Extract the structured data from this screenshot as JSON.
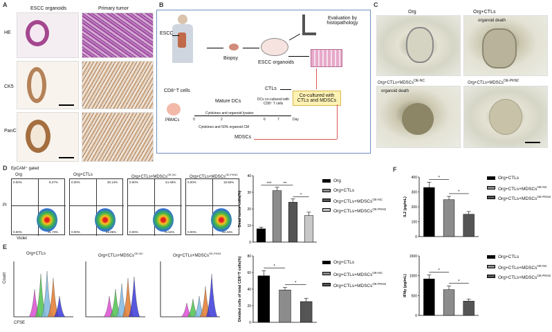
{
  "panel_labels": {
    "a": "A",
    "b": "B",
    "c": "C",
    "d": "D",
    "e": "E",
    "f": "F"
  },
  "panelA": {
    "col1": "ESCC organoids",
    "col2": "Primary tumor",
    "rows": [
      "HE",
      "CK5",
      "PanCk"
    ]
  },
  "panelB": {
    "escc": "ESCC",
    "biopsy": "Biopsy",
    "organoids": "ESCC organoids",
    "evaluation": "Evaluation by histopathology",
    "cd8": "CD8⁺T cells",
    "ctls": "CTLs",
    "coculture": "Co-cultured with CTLs and MDSCs",
    "mature_dcs": "Mature DCs",
    "dcs_cocultured": "DCs co-cultured with CD8⁺ T cells",
    "cytokines_lysates": "Cytokines and organoid lysates",
    "cytokines_cm": "Cytokines and 50% organoid CM",
    "pbmcs": "PBMCs",
    "mdscs": "MDSCs",
    "day": "Day",
    "ticks": [
      "0",
      "2",
      "6",
      "7"
    ]
  },
  "panelC": {
    "org": "Org",
    "org_ctls": "Org+CTLs",
    "org_death1": "organoid death",
    "mdsc_nc": "Org+CTLs+MDSCs",
    "mdsc_nc_sup": "OE-NC",
    "mdsc_pkn2": "Org+CTLs+MDSCs",
    "mdsc_pkn2_sup": "OE-PKN2",
    "org_death2": "organoid death"
  },
  "panelD": {
    "gate": "EpCAM⁺ gated",
    "plot_titles": [
      "Org",
      "Org+CTLs",
      "Org+CTLs+MDSCs",
      "Org+CTLs+MDSCs"
    ],
    "plot_sups": [
      "",
      "",
      "OE-NC",
      "OE-PKN2"
    ],
    "quadrants": [
      [
        "0.00%",
        "8.27%",
        "91.73%",
        "0.00%"
      ],
      [
        "0.00%",
        "30.14%",
        "69.86%",
        "0.00%"
      ],
      [
        "0.00%",
        "24.48%",
        "75.52%",
        "0.00%"
      ],
      [
        "0.00%",
        "15.66%",
        "84.34%",
        "0.00%"
      ]
    ],
    "y_axis": "PI",
    "x_axis": "Violet",
    "legend": [
      "Org",
      "Org+CTLs",
      "Org+CTLs+MDSCs",
      "Org+CTLs+MDSCs"
    ],
    "legend_sups": [
      "",
      "",
      "OE-NC",
      "OE-PKN2"
    ],
    "sig": [
      "***",
      "**",
      "*"
    ]
  },
  "panelE": {
    "plot_titles": [
      "Org+CTLs",
      "Org+CTLs+MDSCs",
      "Org+CTLs+MDSCs"
    ],
    "plot_sups": [
      "",
      "OE-NC",
      "OE-PKN2"
    ],
    "y_axis": "Count",
    "x_axis": "CFSE",
    "legend": [
      "Org+CTLs",
      "Org+CTLs+MDSCs",
      "Org+CTLs+MDSCs"
    ],
    "legend_sups": [
      "",
      "OE-NC",
      "OE-PKN2"
    ],
    "sig": [
      "*",
      "*"
    ]
  },
  "panelF": {
    "legend": [
      "Org+CTLs",
      "Org+CTLs+MDSCs",
      "Org+CTLs+MDSCs"
    ],
    "legend_sups": [
      "",
      "OE-NC",
      "OE-PKN2"
    ],
    "sig": [
      "*",
      "*"
    ]
  },
  "colors": {
    "black": "#000000",
    "dark_gray": "#555555",
    "mid_gray": "#8c8c8c",
    "light_gray": "#c8c8c8",
    "box_border": "#6b8fbf",
    "highlight_box": "#fff2b3",
    "red_line": "#d9534f"
  },
  "chart_data": [
    {
      "type": "bar",
      "panel": "D",
      "categories": [
        "Org",
        "Org+CTLs",
        "Org+CTLs+MDSCs OE-NC",
        "Org+CTLs+MDSCs OE-PKN2"
      ],
      "values": [
        8,
        31,
        24,
        16
      ],
      "errors": [
        1,
        2,
        2,
        2
      ],
      "ylabel": "Dead tumor cells(%)",
      "ylim": [
        0,
        40
      ],
      "yticks": [
        "0",
        "10",
        "20",
        "30",
        "40"
      ],
      "colors": [
        "#000000",
        "#8c8c8c",
        "#555555",
        "#c8c8c8"
      ]
    },
    {
      "type": "bar",
      "panel": "E",
      "categories": [
        "Org+CTLs",
        "Org+CTLs+MDSCs OE-NC",
        "Org+CTLs+MDSCs OE-PKN2"
      ],
      "values": [
        56,
        39,
        25
      ],
      "errors": [
        6,
        3,
        4
      ],
      "ylabel": "Divided cells of total CD8⁺T cells(%)",
      "ylim": [
        0,
        80
      ],
      "yticks": [
        "0",
        "20",
        "40",
        "60",
        "80"
      ],
      "colors": [
        "#000000",
        "#8c8c8c",
        "#555555"
      ]
    },
    {
      "type": "bar",
      "panel": "F-top",
      "categories": [
        "Org+CTLs",
        "Org+CTLs+MDSCs OE-NC",
        "Org+CTLs+MDSCs OE-PKN2"
      ],
      "values": [
        330,
        248,
        150
      ],
      "errors": [
        35,
        22,
        18
      ],
      "ylabel": "IL2 (pg/mL)",
      "ylim": [
        0,
        400
      ],
      "yticks": [
        "0",
        "100",
        "200",
        "300",
        "400"
      ],
      "colors": [
        "#000000",
        "#8c8c8c",
        "#555555"
      ]
    },
    {
      "type": "bar",
      "panel": "F-bottom",
      "categories": [
        "Org+CTLs",
        "Org+CTLs+MDSCs OE-NC",
        "Org+CTLs+MDSCs OE-PKN2"
      ],
      "values": [
        920,
        650,
        360
      ],
      "errors": [
        100,
        90,
        50
      ],
      "ylabel": "IFNγ (pg/mL)",
      "ylim": [
        0,
        1500
      ],
      "yticks": [
        "0",
        "500",
        "1000",
        "1500"
      ],
      "colors": [
        "#000000",
        "#8c8c8c",
        "#555555"
      ]
    }
  ]
}
